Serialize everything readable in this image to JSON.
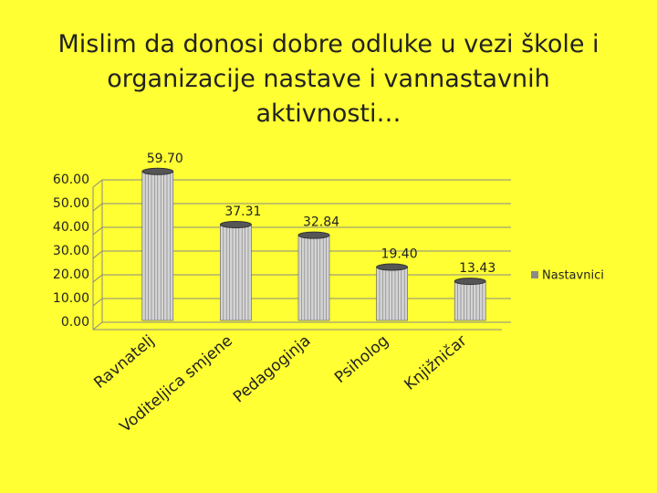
{
  "chart_data": {
    "type": "bar",
    "title": "Mislim da donosi dobre odluke u vezi škole i organizacije nastave i vannastavnih aktivnosti…",
    "categories": [
      "Ravnatelj",
      "Voditeljica smjene",
      "Pedagoginja",
      "Psiholog",
      "Knjižničar"
    ],
    "series": [
      {
        "name": "Nastavnici",
        "color": "#d4d4d4",
        "values": [
          59.7,
          37.31,
          32.84,
          19.4,
          13.43
        ],
        "value_labels": [
          "59.70",
          "37.31",
          "32.84",
          "19.40",
          "13.43"
        ]
      }
    ],
    "ylim": [
      0,
      60
    ],
    "yticks": [
      {
        "value": 0,
        "label": "0.00"
      },
      {
        "value": 10,
        "label": "10.00"
      },
      {
        "value": 20,
        "label": "20.00"
      },
      {
        "value": 30,
        "label": "30.00"
      },
      {
        "value": 40,
        "label": "40.00"
      },
      {
        "value": 50,
        "label": "50.00"
      },
      {
        "value": 60,
        "label": "60.00"
      }
    ],
    "grid": true,
    "legend": "right"
  }
}
